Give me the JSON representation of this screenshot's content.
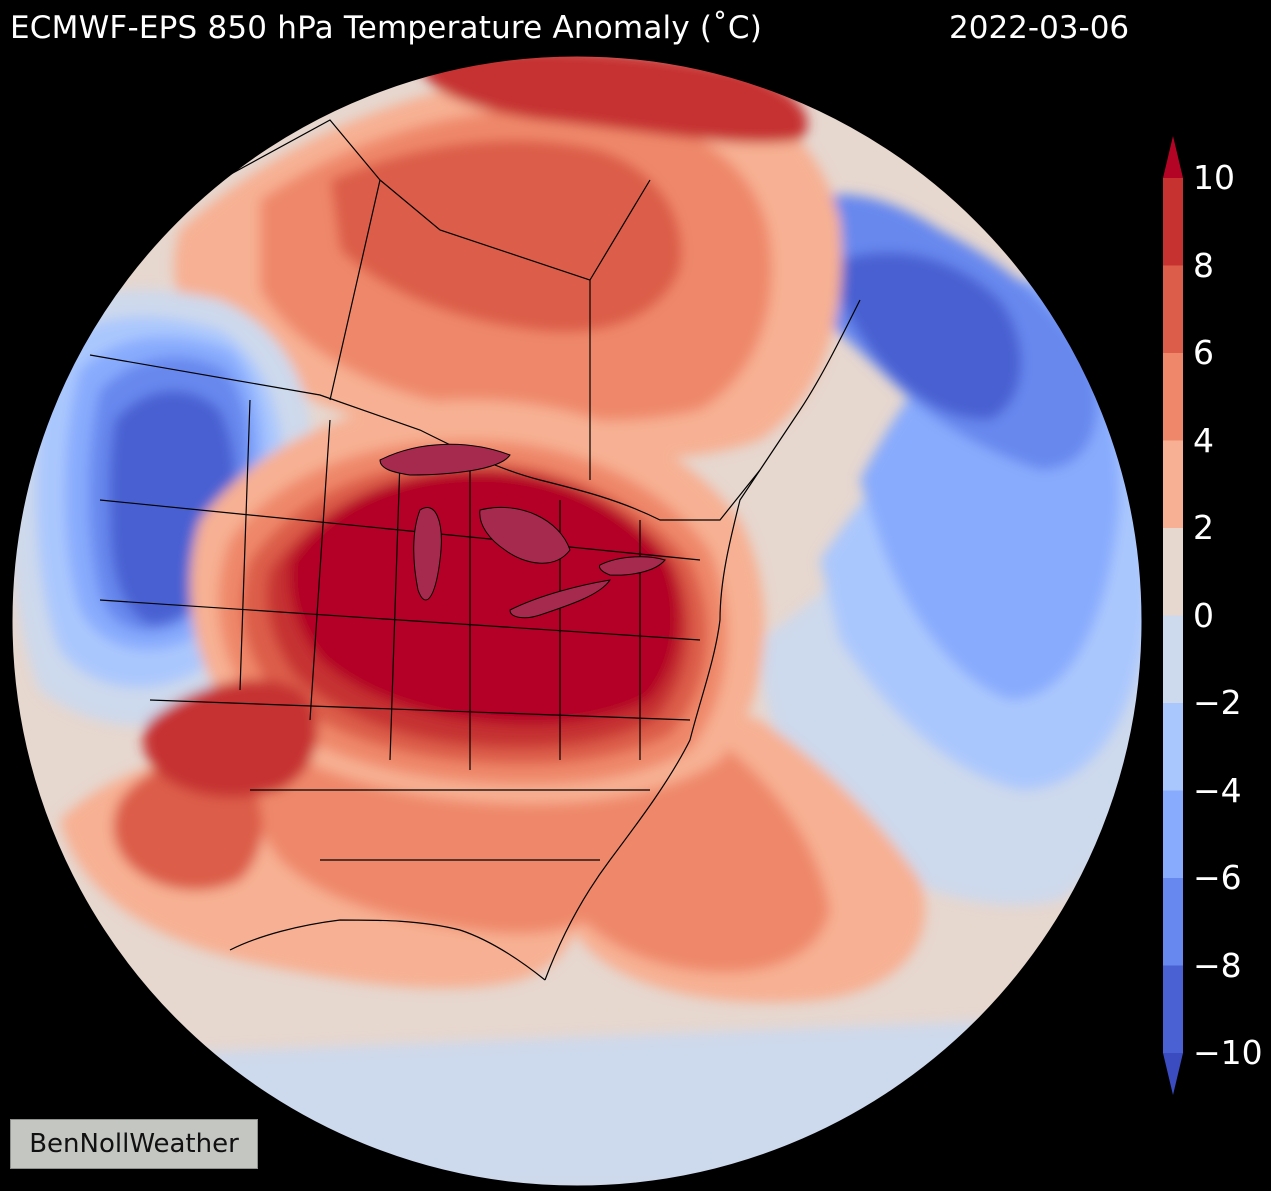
{
  "map": {
    "title": "ECMWF-EPS 850 hPa Temperature Anomaly (˚C)",
    "date": "2022-03-06",
    "projection": "orthographic globe centered on North America",
    "watermark": "BenNollWeather"
  },
  "colorbar": {
    "labels": [
      "10",
      "8",
      "6",
      "4",
      "2",
      "0",
      "−2",
      "−4",
      "−6",
      "−8",
      "−10"
    ],
    "colors": [
      "#b40426",
      "#c63230",
      "#dc5d4a",
      "#ef886b",
      "#f7b093",
      "#e6d7cf",
      "#cdd9ec",
      "#aac7fd",
      "#88abfd",
      "#6788ee",
      "#4961d2",
      "#3b4cc0"
    ],
    "extend": "both"
  },
  "palette": {
    "ocean_neutral": "#e6d7cf",
    "ocean_cool": "#cdd9ec",
    "warm_1": "#f7b093",
    "warm_2": "#ef886b",
    "warm_3": "#dc5d4a",
    "warm_4": "#c63230",
    "warm_5": "#b40426",
    "cool_1": "#aac7fd",
    "cool_2": "#88abfd",
    "cool_3": "#6788ee",
    "cool_4": "#4961d2"
  }
}
